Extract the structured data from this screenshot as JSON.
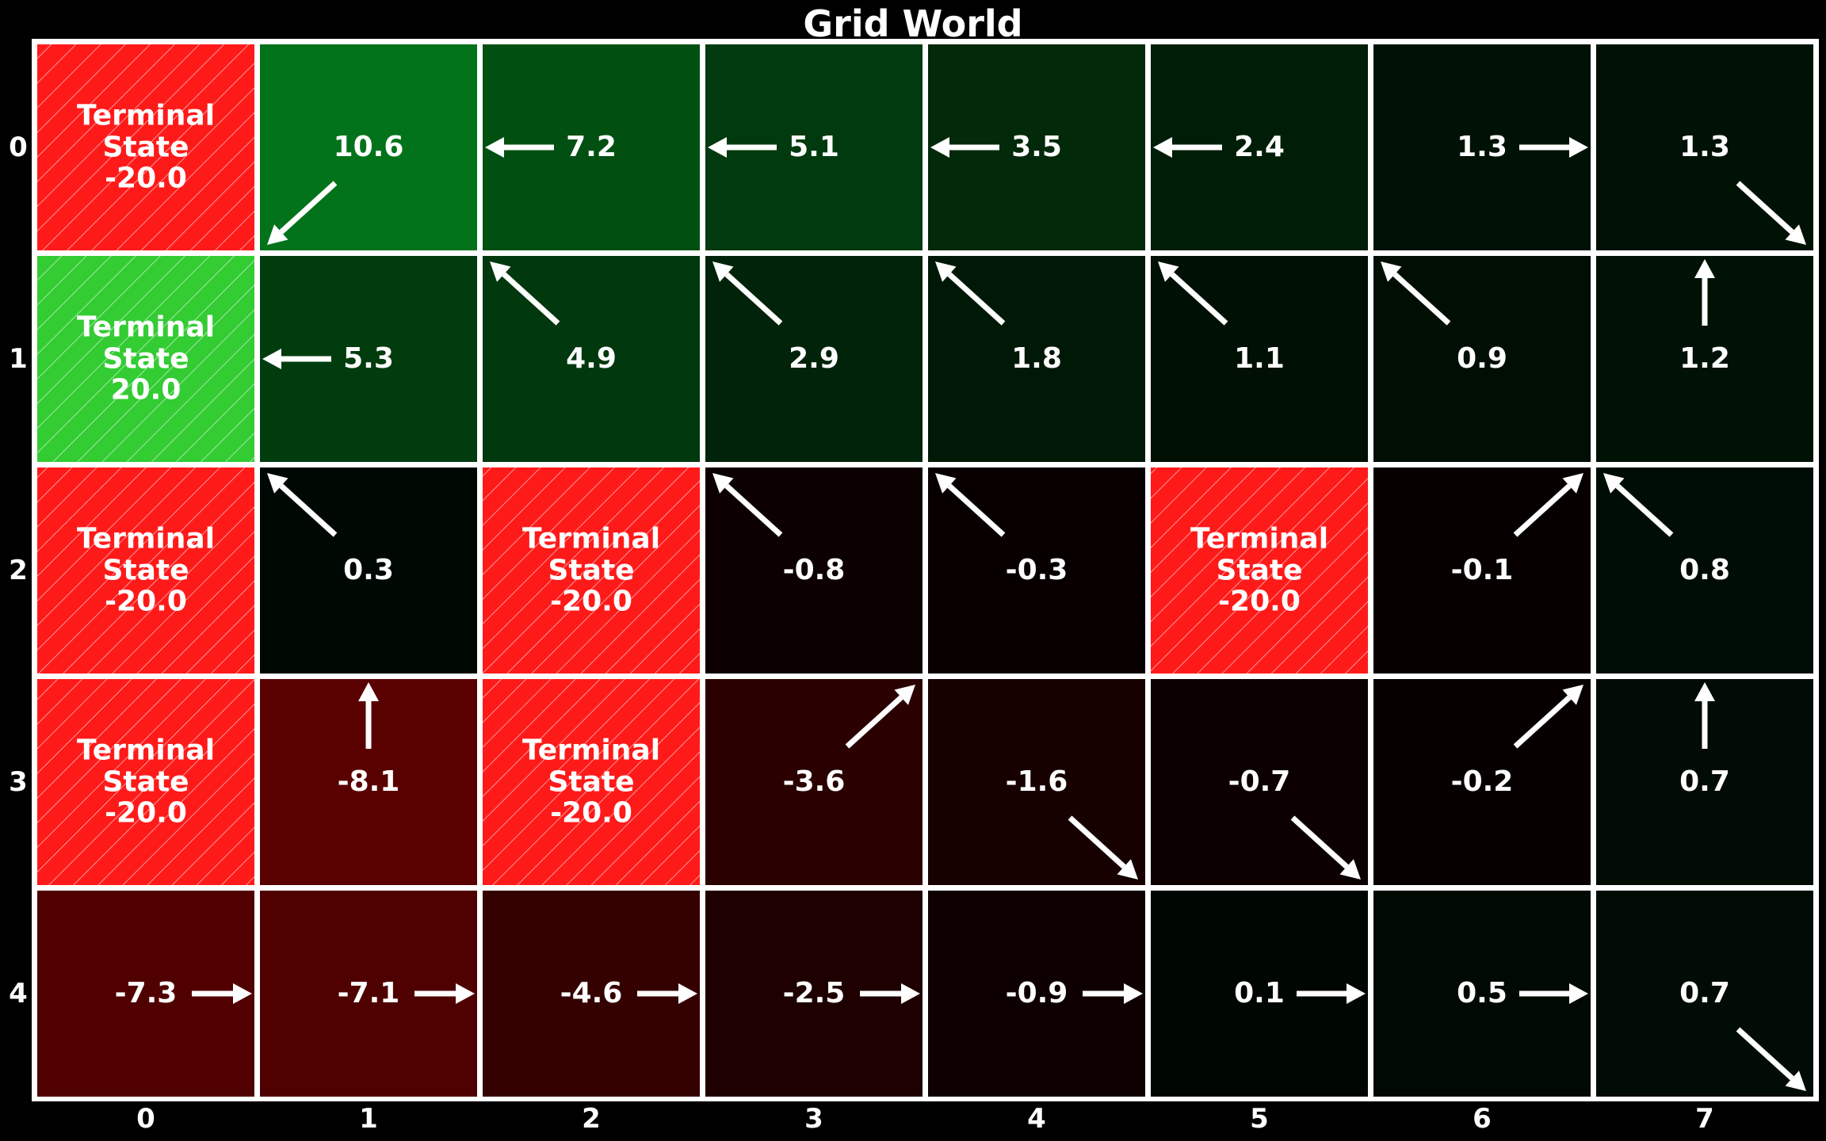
{
  "title": "Grid World",
  "terminal_label": "Terminal\nState",
  "row_labels": [
    "0",
    "1",
    "2",
    "3",
    "4"
  ],
  "col_labels": [
    "0",
    "1",
    "2",
    "3",
    "4",
    "5",
    "6",
    "7"
  ],
  "colors": {
    "max_green": "#33cc33",
    "terminal_negative": "#ff1a1a",
    "terminal_positive": "#33cc33",
    "background": "#000000",
    "grid_lines": "#ffffff"
  },
  "grid": [
    [
      {
        "terminal": true,
        "value": "-20.0"
      },
      {
        "value": "10.6",
        "arrow": "down-left"
      },
      {
        "value": "7.2",
        "arrow": "left"
      },
      {
        "value": "5.1",
        "arrow": "left"
      },
      {
        "value": "3.5",
        "arrow": "left"
      },
      {
        "value": "2.4",
        "arrow": "left"
      },
      {
        "value": "1.3",
        "arrow": "right"
      },
      {
        "value": "1.3",
        "arrow": "down-right"
      }
    ],
    [
      {
        "terminal": true,
        "value": "20.0"
      },
      {
        "value": "5.3",
        "arrow": "left"
      },
      {
        "value": "4.9",
        "arrow": "up-left"
      },
      {
        "value": "2.9",
        "arrow": "up-left"
      },
      {
        "value": "1.8",
        "arrow": "up-left"
      },
      {
        "value": "1.1",
        "arrow": "up-left"
      },
      {
        "value": "0.9",
        "arrow": "up-left"
      },
      {
        "value": "1.2",
        "arrow": "up"
      }
    ],
    [
      {
        "terminal": true,
        "value": "-20.0"
      },
      {
        "value": "0.3",
        "arrow": "up-left"
      },
      {
        "terminal": true,
        "value": "-20.0"
      },
      {
        "value": "-0.8",
        "arrow": "up-left"
      },
      {
        "value": "-0.3",
        "arrow": "up-left"
      },
      {
        "terminal": true,
        "value": "-20.0"
      },
      {
        "value": "-0.1",
        "arrow": "up-right"
      },
      {
        "value": "0.8",
        "arrow": "up-left"
      }
    ],
    [
      {
        "terminal": true,
        "value": "-20.0"
      },
      {
        "value": "-8.1",
        "arrow": "up"
      },
      {
        "terminal": true,
        "value": "-20.0"
      },
      {
        "value": "-3.6",
        "arrow": "up-right"
      },
      {
        "value": "-1.6",
        "arrow": "down-right"
      },
      {
        "value": "-0.7",
        "arrow": "down-right"
      },
      {
        "value": "-0.2",
        "arrow": "up-right"
      },
      {
        "value": "0.7",
        "arrow": "up"
      }
    ],
    [
      {
        "value": "-7.3",
        "arrow": "right"
      },
      {
        "value": "-7.1",
        "arrow": "right"
      },
      {
        "value": "-4.6",
        "arrow": "right"
      },
      {
        "value": "-2.5",
        "arrow": "right"
      },
      {
        "value": "-0.9",
        "arrow": "right"
      },
      {
        "value": "0.1",
        "arrow": "right"
      },
      {
        "value": "0.5",
        "arrow": "right"
      },
      {
        "value": "0.7",
        "arrow": "down-right"
      }
    ]
  ]
}
